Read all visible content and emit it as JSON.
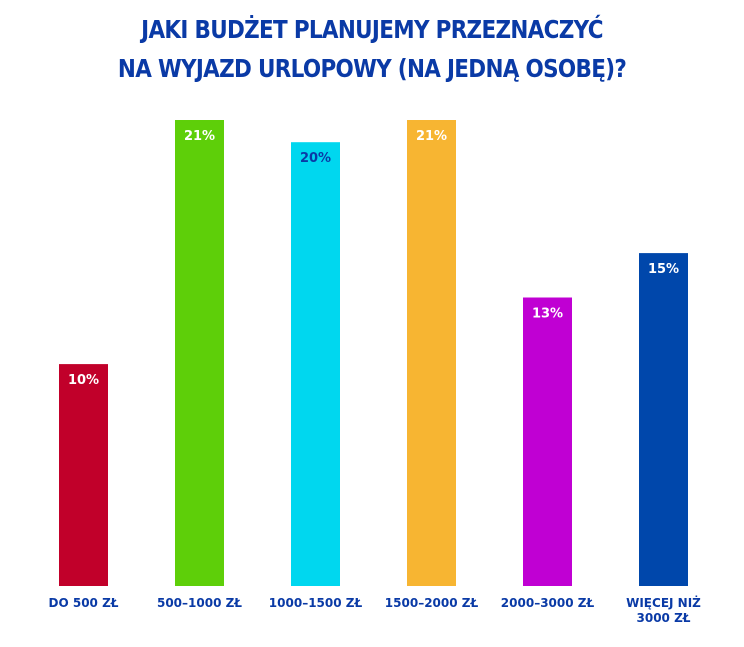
{
  "chart_data": {
    "type": "bar",
    "title": [
      "JAKI BUDŻET PLANUJEMY PRZEZNACZYĆ",
      "NA WYJAZD URLOPOWY (NA JEDNĄ OSOBĘ)?"
    ],
    "categories": [
      [
        "DO 500 ZŁ"
      ],
      [
        "500–1000 ZŁ"
      ],
      [
        "1000–1500 ZŁ"
      ],
      [
        "1500–2000 ZŁ"
      ],
      [
        "2000–3000 ZŁ"
      ],
      [
        "WIĘCEJ NIŻ",
        "3000 ZŁ"
      ]
    ],
    "values": [
      10,
      21,
      20,
      21,
      13,
      15
    ],
    "value_labels": [
      "10%",
      "21%",
      "20%",
      "21%",
      "13%",
      "15%"
    ],
    "colors": [
      "#c1002a",
      "#5ecf09",
      "#00d7ef",
      "#f7b532",
      "#c000d3",
      "#0047ab"
    ],
    "label_colors": [
      "#ffffff",
      "#ffffff",
      "#0a3aa6",
      "#ffffff",
      "#ffffff",
      "#ffffff"
    ],
    "ylim": [
      0,
      21
    ],
    "grid": false,
    "legend": "none",
    "xlabel": "",
    "ylabel": ""
  }
}
